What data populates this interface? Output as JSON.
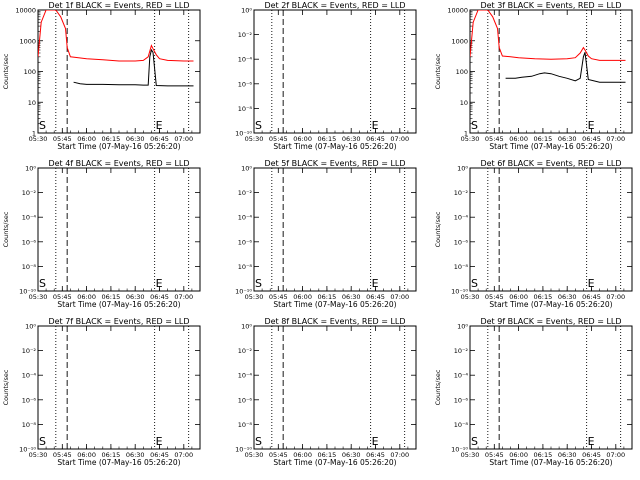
{
  "figure": {
    "tick_labels_x": [
      "05:30",
      "05:45",
      "06:00",
      "06:15",
      "06:30",
      "06:45",
      "07:00"
    ],
    "linear_tick_labels_y": [
      "1",
      "10",
      "100",
      "1000",
      "10000"
    ],
    "log_tick_labels_y": [
      "10⁰",
      "10⁻²",
      "10⁻⁴",
      "10⁻⁶",
      "10⁻⁸",
      "10⁻¹⁰"
    ],
    "marker_start_label": "S",
    "marker_end_label": "E"
  },
  "chart_data": [
    {
      "type": "line",
      "detector": "1f",
      "title": "Det 1f BLACK = Events, RED = LLD",
      "xlabel": "Start Time (07-May-16 05:26:20)",
      "ylabel": "Counts/sec",
      "yscale": "log",
      "ylim": [
        1,
        10000
      ],
      "xlim": [
        "05:30",
        "07:10"
      ],
      "grid": false,
      "markers": {
        "dotted": [
          "05:41",
          "06:42",
          "07:03"
        ],
        "dashed": [
          "05:48"
        ]
      },
      "series": [
        {
          "color": "#000000",
          "x": [
            "05:48",
            "05:52",
            "05:56",
            "06:00",
            "06:10",
            "06:20",
            "06:30",
            "06:35",
            "06:38",
            "06:39",
            "06:40",
            "06:41",
            "06:43",
            "06:50",
            "07:00",
            "07:06"
          ],
          "y": [
            0,
            45,
            40,
            38,
            38,
            37,
            37,
            36,
            36,
            300,
            500,
            420,
            35,
            34,
            34,
            34
          ]
        },
        {
          "color": "#ff0000",
          "x": [
            "05:30",
            "05:32",
            "05:35",
            "05:38",
            "05:41",
            "05:44",
            "05:47",
            "05:48",
            "05:50",
            "05:55",
            "06:00",
            "06:10",
            "06:20",
            "06:30",
            "06:35",
            "06:38",
            "06:40",
            "06:41",
            "06:43",
            "06:45",
            "06:50",
            "07:00",
            "07:06"
          ],
          "y": [
            300,
            4000,
            10000,
            10000,
            10000,
            6000,
            2500,
            600,
            300,
            280,
            260,
            240,
            220,
            220,
            230,
            300,
            700,
            550,
            350,
            260,
            230,
            220,
            220
          ]
        }
      ]
    },
    {
      "type": "line",
      "detector": "2f",
      "title": "Det 2f BLACK = Events, RED = LLD",
      "xlabel": "Start Time (07-May-16 05:26:20)",
      "ylabel": "",
      "yscale": "log",
      "ylim": [
        1e-10,
        1
      ],
      "xlim": [
        "05:30",
        "07:10"
      ],
      "grid": false,
      "markers": {
        "dotted": [
          "05:41",
          "06:42",
          "07:03"
        ],
        "dashed": [
          "05:48"
        ]
      },
      "series": []
    },
    {
      "type": "line",
      "detector": "3f",
      "title": "Det 3f BLACK = Events, RED = LLD",
      "xlabel": "Start Time (07-May-16 05:26:20)",
      "ylabel": "Counts/sec",
      "yscale": "log",
      "ylim": [
        1,
        10000
      ],
      "xlim": [
        "05:30",
        "07:10"
      ],
      "grid": false,
      "markers": {
        "dotted": [
          "05:41",
          "06:42",
          "07:03"
        ],
        "dashed": [
          "05:48"
        ]
      },
      "series": [
        {
          "color": "#000000",
          "x": [
            "05:48",
            "05:52",
            "05:58",
            "06:02",
            "06:08",
            "06:13",
            "06:16",
            "06:20",
            "06:25",
            "06:30",
            "06:35",
            "06:38",
            "06:40",
            "06:41",
            "06:43",
            "06:50",
            "07:00",
            "07:06"
          ],
          "y": [
            0,
            60,
            60,
            65,
            70,
            85,
            90,
            85,
            70,
            60,
            50,
            60,
            300,
            420,
            55,
            45,
            45,
            45
          ]
        },
        {
          "color": "#ff0000",
          "x": [
            "05:30",
            "05:32",
            "05:35",
            "05:38",
            "05:41",
            "05:44",
            "05:47",
            "05:48",
            "05:50",
            "05:55",
            "06:00",
            "06:10",
            "06:20",
            "06:30",
            "06:35",
            "06:38",
            "06:40",
            "06:41",
            "06:43",
            "06:45",
            "06:50",
            "07:00",
            "07:06"
          ],
          "y": [
            300,
            4000,
            10000,
            10000,
            10000,
            6000,
            2500,
            600,
            320,
            300,
            280,
            260,
            250,
            260,
            280,
            400,
            600,
            500,
            320,
            260,
            230,
            230,
            230
          ]
        }
      ]
    },
    {
      "type": "line",
      "detector": "4f",
      "title": "Det 4f BLACK = Events, RED = LLD",
      "xlabel": "Start Time (07-May-16 05:26:20)",
      "ylabel": "Counts/sec",
      "yscale": "log",
      "ylim": [
        1e-10,
        1
      ],
      "xlim": [
        "05:30",
        "07:10"
      ],
      "grid": false,
      "markers": {
        "dotted": [
          "05:41",
          "06:42",
          "07:03"
        ],
        "dashed": [
          "05:48"
        ]
      },
      "series": []
    },
    {
      "type": "line",
      "detector": "5f",
      "title": "Det 5f BLACK = Events, RED = LLD",
      "xlabel": "Start Time (07-May-16 05:26:20)",
      "ylabel": "",
      "yscale": "log",
      "ylim": [
        1e-10,
        1
      ],
      "xlim": [
        "05:30",
        "07:10"
      ],
      "grid": false,
      "markers": {
        "dotted": [
          "05:41",
          "06:42",
          "07:03"
        ],
        "dashed": [
          "05:48"
        ]
      },
      "series": []
    },
    {
      "type": "line",
      "detector": "6f",
      "title": "Det 6f BLACK = Events, RED = LLD",
      "xlabel": "Start Time (07-May-16 05:26:20)",
      "ylabel": "Counts/sec",
      "yscale": "log",
      "ylim": [
        1e-10,
        1
      ],
      "xlim": [
        "05:30",
        "07:10"
      ],
      "grid": false,
      "markers": {
        "dotted": [
          "05:41",
          "06:42",
          "07:03"
        ],
        "dashed": [
          "05:48"
        ]
      },
      "series": []
    },
    {
      "type": "line",
      "detector": "7f",
      "title": "Det 7f BLACK = Events, RED = LLD",
      "xlabel": "Start Time (07-May-16 05:26:20)",
      "ylabel": "Counts/sec",
      "yscale": "log",
      "ylim": [
        1e-10,
        1
      ],
      "xlim": [
        "05:30",
        "07:10"
      ],
      "grid": false,
      "markers": {
        "dotted": [
          "05:41",
          "06:42",
          "07:03"
        ],
        "dashed": [
          "05:48"
        ]
      },
      "series": []
    },
    {
      "type": "line",
      "detector": "8f",
      "title": "Det 8f BLACK = Events, RED = LLD",
      "xlabel": "Start Time (07-May-16 05:26:20)",
      "ylabel": "",
      "yscale": "log",
      "ylim": [
        1e-10,
        1
      ],
      "xlim": [
        "05:30",
        "07:10"
      ],
      "grid": false,
      "markers": {
        "dotted": [
          "05:41",
          "06:42",
          "07:03"
        ],
        "dashed": [
          "05:48"
        ]
      },
      "series": []
    },
    {
      "type": "line",
      "detector": "9f",
      "title": "Det 9f BLACK = Events, RED = LLD",
      "xlabel": "Start Time (07-May-16 05:26:20)",
      "ylabel": "Counts/sec",
      "yscale": "log",
      "ylim": [
        1e-10,
        1
      ],
      "xlim": [
        "05:30",
        "07:10"
      ],
      "grid": false,
      "markers": {
        "dotted": [
          "05:41",
          "06:42",
          "07:03"
        ],
        "dashed": [
          "05:48"
        ]
      },
      "series": []
    }
  ]
}
